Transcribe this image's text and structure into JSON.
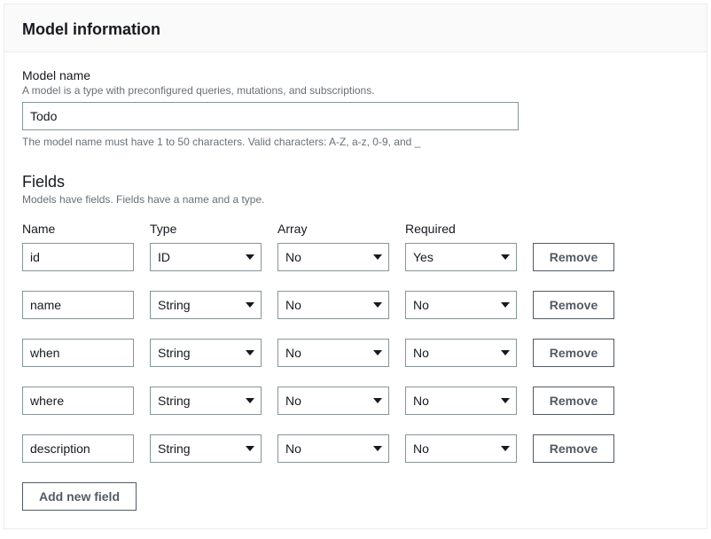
{
  "panel": {
    "title": "Model information"
  },
  "modelName": {
    "label": "Model name",
    "hint": "A model is a type with preconfigured queries, mutations, and subscriptions.",
    "value": "Todo",
    "constraint": "The model name must have 1 to 50 characters. Valid characters: A-Z, a-z, 0-9, and _"
  },
  "fieldsSection": {
    "title": "Fields",
    "hint": "Models have fields. Fields have a name and a type."
  },
  "columns": {
    "name": "Name",
    "type": "Type",
    "array": "Array",
    "required": "Required"
  },
  "rows": [
    {
      "name": "id",
      "type": "ID",
      "array": "No",
      "required": "Yes"
    },
    {
      "name": "name",
      "type": "String",
      "array": "No",
      "required": "No"
    },
    {
      "name": "when",
      "type": "String",
      "array": "No",
      "required": "No"
    },
    {
      "name": "where",
      "type": "String",
      "array": "No",
      "required": "No"
    },
    {
      "name": "description",
      "type": "String",
      "array": "No",
      "required": "No"
    }
  ],
  "buttons": {
    "remove": "Remove",
    "addField": "Add new field"
  },
  "style": {
    "colors": {
      "border": "#879596",
      "panelBorder": "#eaeded",
      "text": "#16191f",
      "muted": "#687078",
      "btnBorder": "#545b64",
      "background": "#ffffff",
      "headerBg": "#fafafa"
    },
    "layout": {
      "columnWidthPx": 126,
      "rowGapPx": 22,
      "colGapPx": 18,
      "inputHeightPx": 32,
      "modelNameInputWidthPx": 560,
      "removeBtnWidthPx": 92
    },
    "typography": {
      "baseFontSizePx": 14,
      "titleFontSizePx": 18,
      "hintFontSizePx": 12,
      "titleWeight": 700,
      "btnWeight": 700
    }
  }
}
